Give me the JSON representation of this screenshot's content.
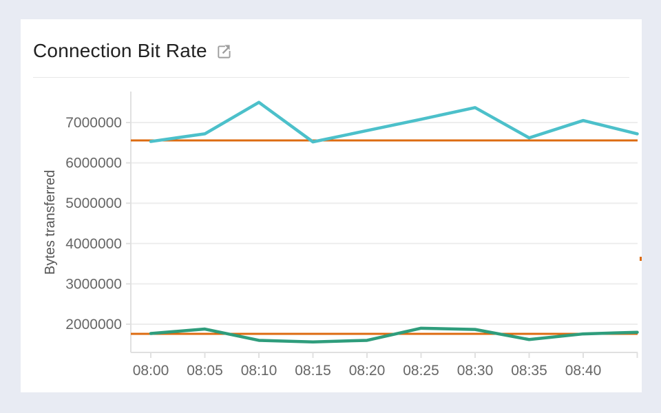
{
  "header": {
    "title": "Connection Bit Rate",
    "external_link_icon": "open-in-new-window-icon"
  },
  "chart_data": {
    "type": "line",
    "title": "Connection Bit Rate",
    "xlabel": "",
    "ylabel": "Bytes transferred",
    "grid": "horizontal-only",
    "legend": "none",
    "ylim": [
      1300000,
      7765000
    ],
    "colors": {
      "series_1": "#4cc0ca",
      "series_2": "#2f9d7c",
      "reference": "#dd6b10",
      "gridline": "#ededed",
      "axis": "#e0e0e0",
      "tick_text": "#666666"
    },
    "y_ticks": [
      {
        "value": 2000000,
        "label": "2000000"
      },
      {
        "value": 3000000,
        "label": "3000000"
      },
      {
        "value": 4000000,
        "label": "4000000"
      },
      {
        "value": 5000000,
        "label": "5000000"
      },
      {
        "value": 6000000,
        "label": "6000000"
      },
      {
        "value": 7000000,
        "label": "7000000"
      }
    ],
    "x_ticks": [
      {
        "t": 0,
        "label": "08:00"
      },
      {
        "t": 5,
        "label": "08:05"
      },
      {
        "t": 10,
        "label": "08:10"
      },
      {
        "t": 15,
        "label": "08:15"
      },
      {
        "t": 20,
        "label": "08:20"
      },
      {
        "t": 25,
        "label": "08:25"
      },
      {
        "t": 30,
        "label": "08:30"
      },
      {
        "t": 35,
        "label": "08:35"
      },
      {
        "t": 40,
        "label": "08:40"
      },
      {
        "t": 45,
        "label": ""
      }
    ],
    "series": [
      {
        "name": "series-1",
        "color": "#4cc0ca",
        "x_minutes": [
          0,
          5,
          10,
          15,
          20,
          25,
          30,
          35,
          40,
          45
        ],
        "values": [
          6530000,
          6720000,
          7500000,
          6520000,
          6800000,
          7080000,
          7370000,
          6620000,
          7050000,
          6720000
        ]
      },
      {
        "name": "series-2",
        "color": "#2f9d7c",
        "x_minutes": [
          0,
          5,
          10,
          15,
          20,
          25,
          30,
          35,
          40,
          45
        ],
        "values": [
          1770000,
          1880000,
          1600000,
          1560000,
          1600000,
          1900000,
          1870000,
          1620000,
          1760000,
          1800000
        ]
      }
    ],
    "reference_lines": [
      {
        "color": "#dd6b10",
        "value": 6556000
      },
      {
        "color": "#dd6b10",
        "value": 1761000
      }
    ]
  }
}
